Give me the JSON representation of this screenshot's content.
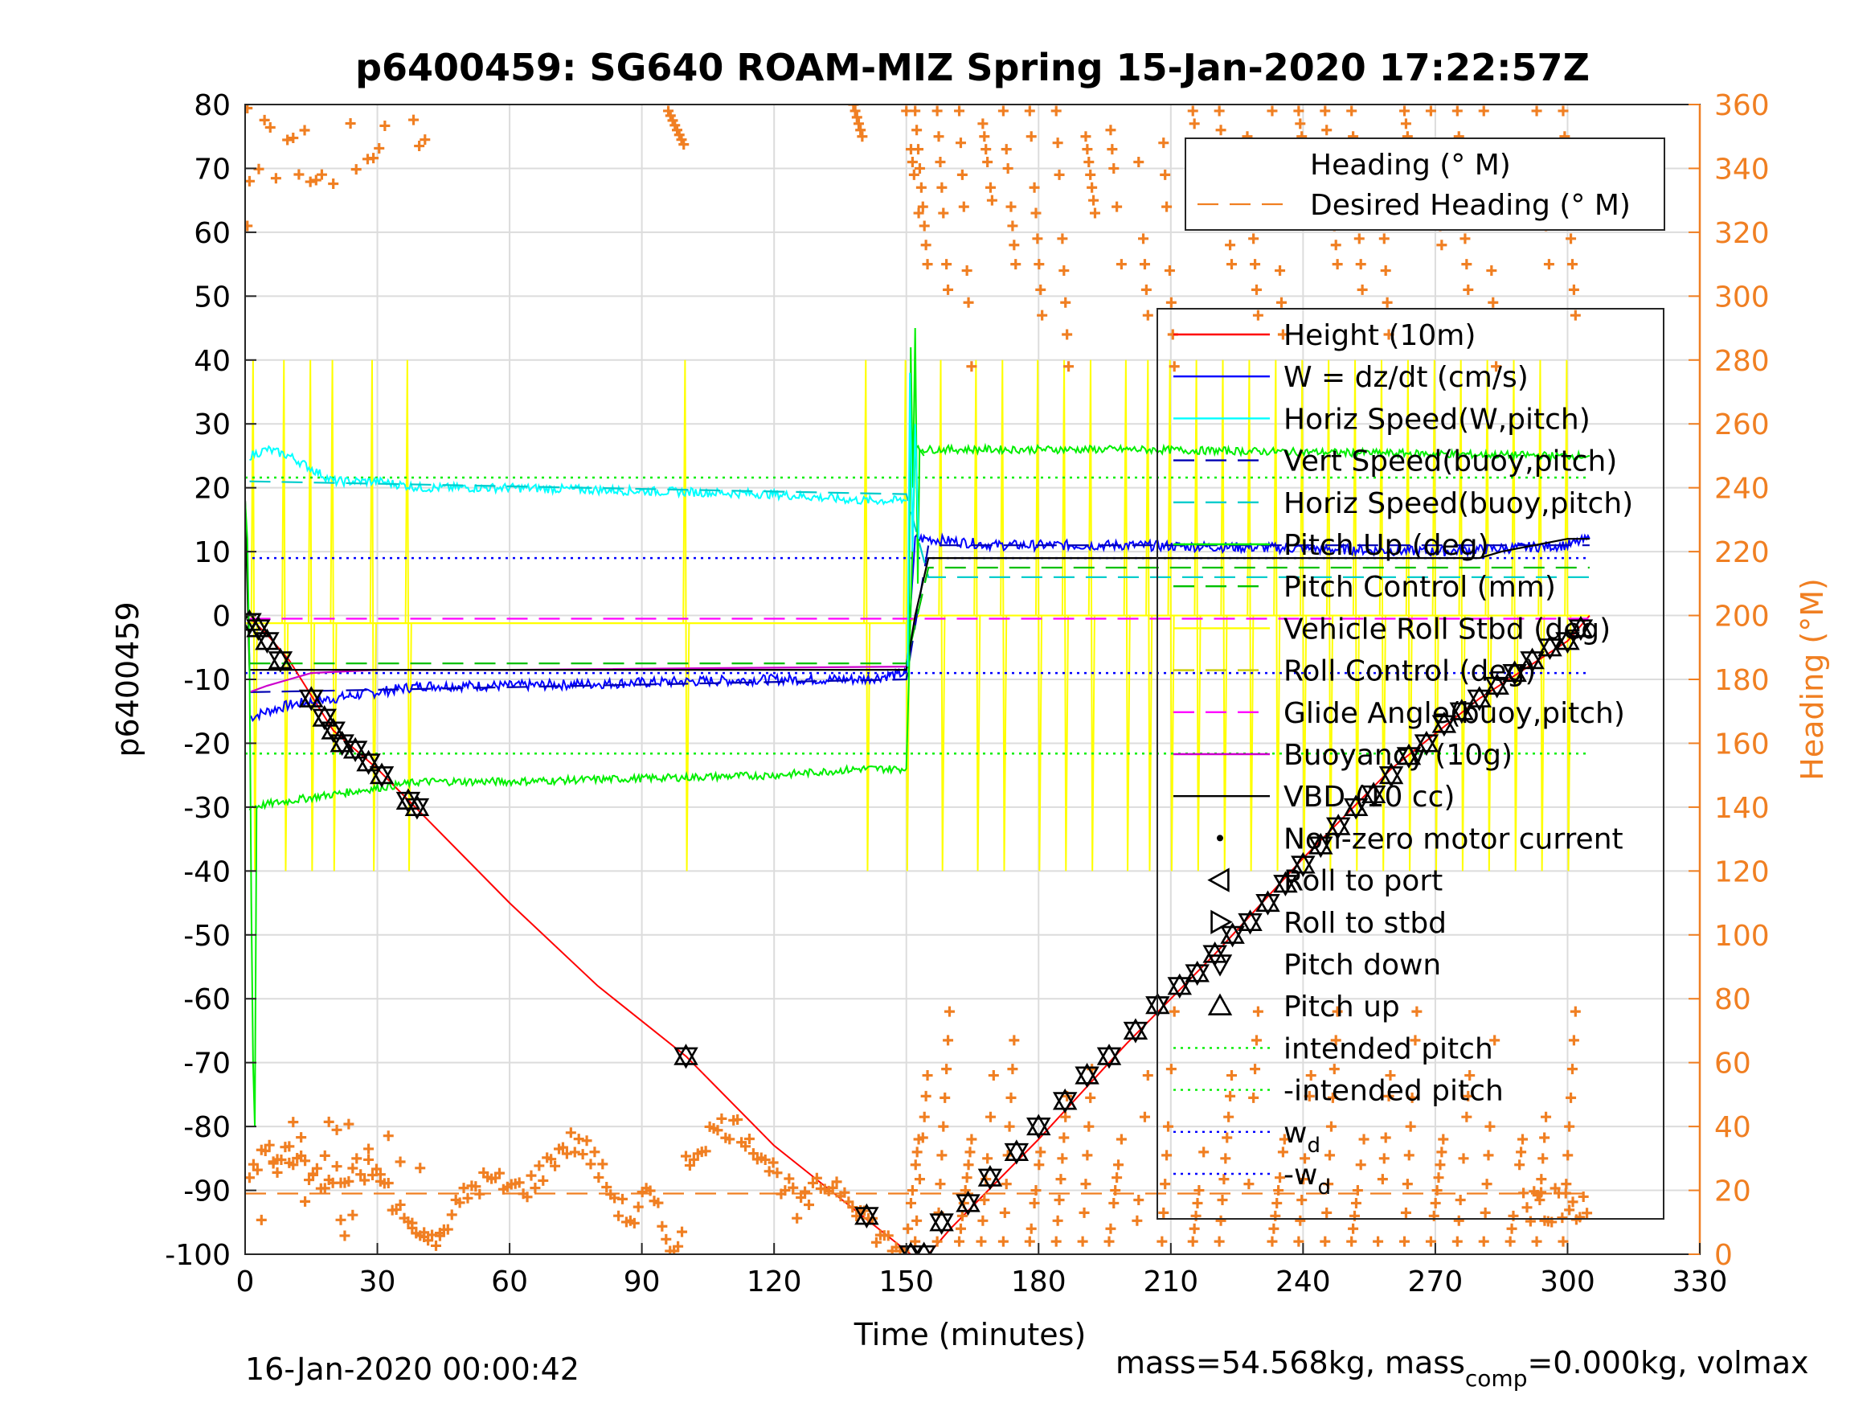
{
  "chart_data": {
    "type": "line",
    "title": "p6400459: SG640 ROAM-MIZ Spring 15-Jan-2020 17:22:57Z",
    "xlabel": "Time (minutes)",
    "ylabel": "p6400459",
    "y2label": "Heading (°M)",
    "xlim": [
      0,
      330
    ],
    "ylim": [
      -100,
      80
    ],
    "y2lim": [
      0,
      360
    ],
    "x_ticks": [
      "0",
      "30",
      "60",
      "90",
      "120",
      "150",
      "180",
      "210",
      "240",
      "270",
      "300",
      "330"
    ],
    "y_ticks": [
      "80",
      "70",
      "60",
      "50",
      "40",
      "30",
      "20",
      "10",
      "0",
      "-10",
      "-20",
      "-30",
      "-40",
      "-50",
      "-60",
      "-70",
      "-80",
      "-90",
      "-100"
    ],
    "y2_ticks": [
      "360",
      "340",
      "320",
      "300",
      "280",
      "260",
      "240",
      "220",
      "200",
      "180",
      "160",
      "140",
      "120",
      "100",
      "80",
      "60",
      "40",
      "20",
      "0"
    ],
    "grid": true,
    "colors": {
      "height": "#ff0000",
      "w": "#0000ff",
      "horiz_speed": "#00ffff",
      "vert_speed_buoy": "#0000b3",
      "horiz_speed_buoy": "#00cccc",
      "pitch_up": "#00ee00",
      "pitch_control": "#00c000",
      "roll": "#ffff00",
      "roll_control": "#cccc00",
      "glide_angle": "#ff00ff",
      "buoyancy": "#cc00cc",
      "vbd": "#000000",
      "heading": "#f07f22",
      "intended_pitch": "#00ee00",
      "wd": "#0000ff"
    },
    "legend_heading": [
      {
        "label": "Heading (° M)"
      },
      {
        "label": "Desired Heading (° M)"
      }
    ],
    "legend_main": [
      {
        "label": "Height (10m)"
      },
      {
        "label": "W = dz/dt (cm/s)"
      },
      {
        "label": "Horiz Speed(W,pitch)"
      },
      {
        "label": "Vert Speed(buoy,pitch)"
      },
      {
        "label": "Horiz Speed(buoy,pitch)"
      },
      {
        "label": "Pitch Up (deg)"
      },
      {
        "label": "Pitch Control (mm)"
      },
      {
        "label": "Vehicle Roll Stbd (deg)"
      },
      {
        "label": "Roll Control (deg)"
      },
      {
        "label": "Glide Angle(buoy,pitch)"
      },
      {
        "label": "Buoyancy (10g)"
      },
      {
        "label": "VBD (10 cc)"
      },
      {
        "label": "Non-zero motor current"
      },
      {
        "label": "Roll to port"
      },
      {
        "label": "Roll to stbd"
      },
      {
        "label": "Pitch down"
      },
      {
        "label": "Pitch up"
      },
      {
        "label": "intended pitch"
      },
      {
        "label": "-intended pitch"
      },
      {
        "label": "w",
        "sub": "d"
      },
      {
        "label": "-w",
        "sub": "d"
      }
    ],
    "series": [
      {
        "name": "Height (10m)",
        "x": [
          0,
          2,
          5,
          10,
          20,
          30,
          40,
          60,
          80,
          100,
          120,
          140,
          151,
          155,
          160,
          180,
          200,
          220,
          240,
          260,
          280,
          300,
          305
        ],
        "y": [
          0,
          -1,
          -3,
          -7,
          -18,
          -24,
          -31,
          -45,
          -58,
          -69,
          -83,
          -94,
          -100,
          -100,
          -96,
          -82,
          -67,
          -53,
          -38,
          -24,
          -13,
          -4,
          0
        ]
      },
      {
        "name": "W = dz/dt (cm/s)",
        "x": [
          1,
          5,
          10,
          20,
          30,
          40,
          60,
          90,
          120,
          140,
          150,
          152,
          155,
          170,
          200,
          240,
          270,
          300,
          305
        ],
        "y": [
          -16,
          -15,
          -14,
          -13,
          -12,
          -11,
          -11,
          -10.5,
          -10,
          -10,
          -9,
          12,
          12,
          11,
          11,
          10.5,
          10,
          11,
          12
        ]
      },
      {
        "name": "Horiz Speed(W,pitch)",
        "x": [
          1,
          5,
          10,
          20,
          30,
          40,
          60,
          90,
          120,
          140,
          150
        ],
        "y": [
          25,
          26,
          25,
          21,
          21,
          20,
          20,
          19.5,
          19,
          18,
          18
        ]
      },
      {
        "name": "Vert Speed(buoy,pitch)",
        "x": [
          1,
          40,
          150,
          155,
          305
        ],
        "y": [
          -12,
          -11.5,
          -10,
          11,
          11
        ]
      },
      {
        "name": "Horiz Speed(buoy,pitch)",
        "x": [
          1,
          40,
          150,
          155,
          305
        ],
        "y": [
          21,
          20.5,
          19,
          6,
          6
        ]
      },
      {
        "name": "Pitch Up (deg)",
        "x": [
          1,
          10,
          20,
          30,
          40,
          60,
          90,
          120,
          140,
          150,
          152,
          155,
          200,
          250,
          300,
          305
        ],
        "y": [
          -30,
          -29,
          -28,
          -27,
          -26,
          -26,
          -25.5,
          -25,
          -24,
          -24,
          26,
          26,
          26,
          25.5,
          25,
          25
        ]
      },
      {
        "name": "Pitch Control (mm)",
        "x": [
          1,
          150,
          155,
          305
        ],
        "y": [
          -7.5,
          -7.5,
          7.5,
          7.5
        ]
      },
      {
        "name": "Glide Angle(buoy,pitch)",
        "x": [
          1,
          150,
          155,
          305
        ],
        "y": [
          -0.5,
          -0.5,
          -0.5,
          -0.5
        ]
      },
      {
        "name": "Buoyancy (10g)",
        "x": [
          1,
          5,
          10,
          15,
          30,
          60,
          150
        ],
        "y": [
          -12,
          -11,
          -10,
          -9,
          -8.5,
          -8.5,
          -8
        ]
      },
      {
        "name": "VBD (10 cc)",
        "x": [
          0,
          1,
          150,
          152,
          155,
          280,
          285,
          300,
          305
        ],
        "y": [
          18,
          -8.5,
          -8.5,
          0,
          9,
          9,
          10,
          12,
          12
        ]
      },
      {
        "name": "intended pitch",
        "x": [
          0,
          305
        ],
        "y": [
          21.6,
          21.6
        ]
      },
      {
        "name": "-intended pitch",
        "x": [
          0,
          305
        ],
        "y": [
          -21.6,
          -21.6
        ]
      },
      {
        "name": "w_d",
        "x": [
          0,
          305
        ],
        "y": [
          9,
          9
        ]
      },
      {
        "name": "-w_d",
        "x": [
          0,
          305
        ],
        "y": [
          -9,
          -9
        ]
      }
    ],
    "roll_spikes_min": [
      2,
      9,
      15,
      20,
      29,
      37,
      100,
      141,
      150,
      158,
      166,
      172,
      180,
      186,
      192,
      200,
      205,
      210,
      216,
      222,
      228,
      234,
      240,
      246,
      252,
      258,
      264,
      270,
      276,
      282,
      288,
      294,
      300
    ],
    "pitch_markers": [
      {
        "x": 1,
        "y": -1
      },
      {
        "x": 3,
        "y": -2
      },
      {
        "x": 5,
        "y": -4
      },
      {
        "x": 8,
        "y": -7
      },
      {
        "x": 15,
        "y": -13
      },
      {
        "x": 18,
        "y": -16
      },
      {
        "x": 20,
        "y": -18
      },
      {
        "x": 22,
        "y": -20
      },
      {
        "x": 25,
        "y": -21
      },
      {
        "x": 28,
        "y": -23
      },
      {
        "x": 31,
        "y": -25
      },
      {
        "x": 37,
        "y": -29
      },
      {
        "x": 39,
        "y": -30
      },
      {
        "x": 100,
        "y": -69
      },
      {
        "x": 141,
        "y": -94
      },
      {
        "x": 151,
        "y": -100
      },
      {
        "x": 154,
        "y": -100
      },
      {
        "x": 158,
        "y": -95
      },
      {
        "x": 164,
        "y": -92
      },
      {
        "x": 169,
        "y": -88
      },
      {
        "x": 175,
        "y": -84
      },
      {
        "x": 180,
        "y": -80
      },
      {
        "x": 186,
        "y": -76
      },
      {
        "x": 191,
        "y": -72
      },
      {
        "x": 196,
        "y": -69
      },
      {
        "x": 202,
        "y": -65
      },
      {
        "x": 207,
        "y": -61
      },
      {
        "x": 212,
        "y": -58
      },
      {
        "x": 216,
        "y": -56
      },
      {
        "x": 220,
        "y": -53
      },
      {
        "x": 224,
        "y": -50
      },
      {
        "x": 228,
        "y": -48
      },
      {
        "x": 232,
        "y": -45
      },
      {
        "x": 236,
        "y": -42
      },
      {
        "x": 240,
        "y": -39
      },
      {
        "x": 244,
        "y": -36
      },
      {
        "x": 248,
        "y": -33
      },
      {
        "x": 252,
        "y": -30
      },
      {
        "x": 256,
        "y": -28
      },
      {
        "x": 260,
        "y": -25
      },
      {
        "x": 264,
        "y": -22
      },
      {
        "x": 268,
        "y": -20
      },
      {
        "x": 272,
        "y": -17
      },
      {
        "x": 276,
        "y": -15
      },
      {
        "x": 280,
        "y": -13
      },
      {
        "x": 284,
        "y": -11
      },
      {
        "x": 288,
        "y": -9
      },
      {
        "x": 292,
        "y": -7
      },
      {
        "x": 296,
        "y": -5
      },
      {
        "x": 300,
        "y": -4
      },
      {
        "x": 303,
        "y": -2
      }
    ],
    "heading_desired_deg": 19
  },
  "footer": {
    "datetime": "16-Jan-2020 00:00:42",
    "mass_prefix": "mass=54.568kg, mass",
    "mass_sub": "comp",
    "mass_suffix": "=0.000kg, volmax"
  }
}
